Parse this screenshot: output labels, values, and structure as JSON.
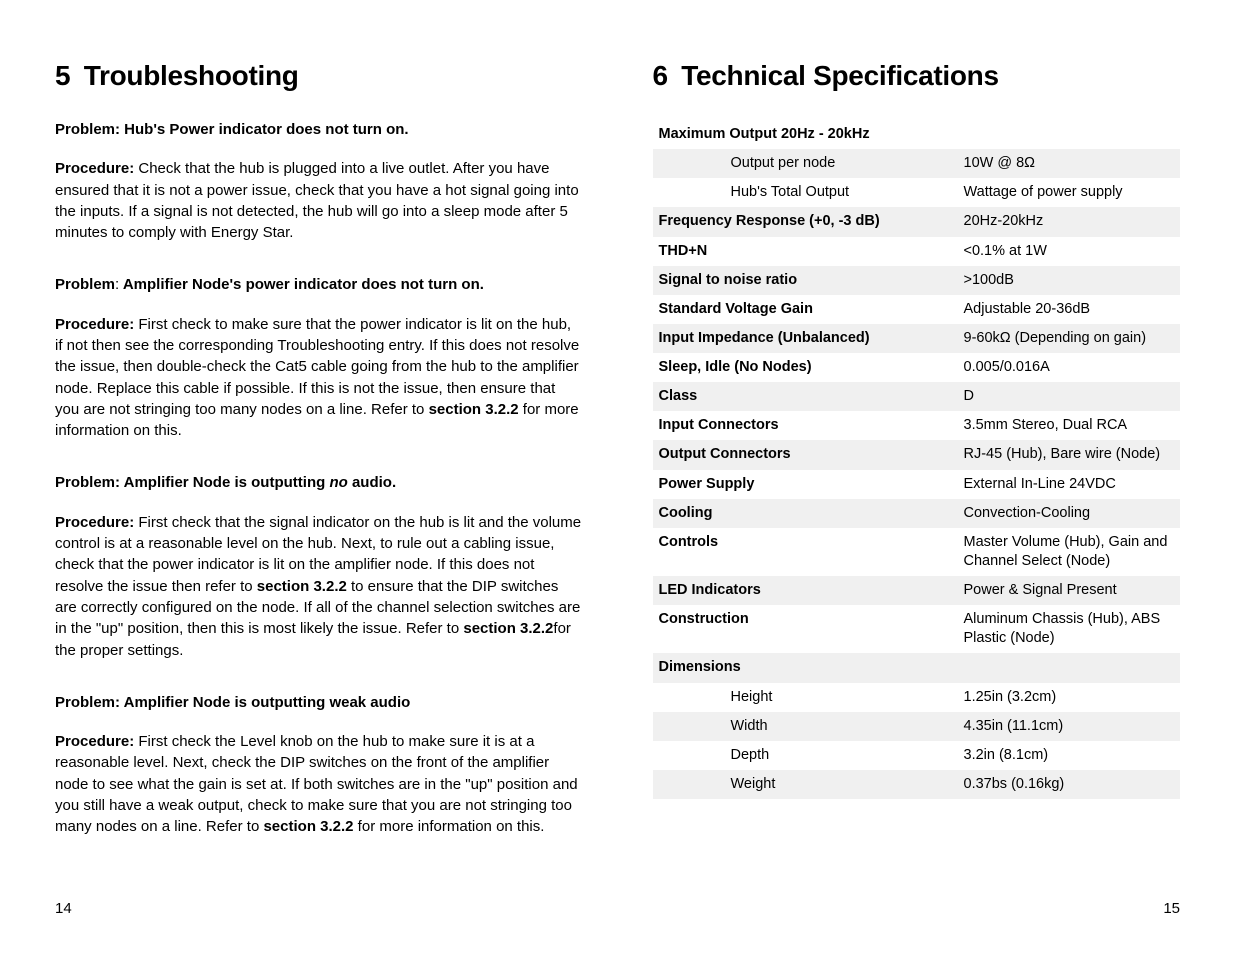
{
  "left": {
    "heading_num": "5",
    "heading_text": "Troubleshooting",
    "problems": [
      {
        "title_html": "Problem: Hub's Power indicator does not turn on.",
        "proc_html": "<b>Procedure:</b> Check that the hub is plugged into a live outlet. After you have ensured that it is not a power issue, check that you have a hot signal going into the inputs. If a signal is not detected, the hub will go into a sleep mode after 5 minutes to comply with Energy Star."
      },
      {
        "title_html": "<b>Problem</b><span class=\"no-bold-colon\">:</span> <b>Amplifier Node's power indicator does not turn on.</b>",
        "proc_html": "<b>Procedure:</b> First check to make sure that the power indicator is lit on the hub, if not then see the corresponding Troubleshooting entry. If this does not resolve the issue, then double-check the Cat5 cable going from the hub to the amplifier node. Replace this cable if possible. If this is not the issue, then ensure that you are not stringing too many nodes on a line. Refer to <b>section 3.2.2</b> for more information on this."
      },
      {
        "title_html": "Problem: Amplifier Node is outputting <i>no</i> audio.",
        "proc_html": "<b>Procedure:</b> First check that the signal indicator on the hub is lit and the volume control is at a reasonable level on the hub. Next, to rule out a cabling issue, check that the power indicator is lit on the amplifier node. If this does not resolve the issue then refer to <b>section 3.2.2</b> to ensure that the DIP switches are correctly configured on the node. If all of the channel selection switches are in the \"up\" position, then this is most likely the issue. Refer to <b>section 3.2.2</b>for the proper settings."
      },
      {
        "title_html": "Problem: Amplifier Node is outputting weak audio",
        "proc_html": "<b>Procedure:</b> First check the Level knob on the hub to make sure it is at a reasonable level. Next, check the DIP switches on the front of the amplifier node to see what the gain is set at. If both switches are in the \"up\" position and you still have a weak output, check to make sure that you are not stringing too many nodes on a line. Refer to <b>section 3.2.2</b> for more information on this."
      }
    ]
  },
  "right": {
    "heading_num": "6",
    "heading_text": "Technical Specifications",
    "rows": [
      {
        "lab": "Maximum Output 20Hz - 20kHz",
        "val": "",
        "sub": false,
        "alt": false
      },
      {
        "lab": "Output per node",
        "val": "10W @ 8Ω",
        "sub": true,
        "alt": true
      },
      {
        "lab": "Hub's Total Output",
        "val": "Wattage of power supply",
        "sub": true,
        "alt": false
      },
      {
        "lab": "Frequency Response (+0, -3 dB)",
        "val": "20Hz-20kHz",
        "sub": false,
        "alt": true
      },
      {
        "lab": "THD+N",
        "val": "<0.1% at 1W",
        "sub": false,
        "alt": false
      },
      {
        "lab": "Signal to noise ratio",
        "val": ">100dB",
        "sub": false,
        "alt": true
      },
      {
        "lab": "Standard Voltage Gain",
        "val": "Adjustable 20-36dB",
        "sub": false,
        "alt": false
      },
      {
        "lab": "Input Impedance (Unbalanced)",
        "val": "9-60kΩ (Depending on gain)",
        "sub": false,
        "alt": true
      },
      {
        "lab": "Sleep, Idle (No Nodes)",
        "val": "0.005/0.016A",
        "sub": false,
        "alt": false
      },
      {
        "lab": "Class",
        "val": "D",
        "sub": false,
        "alt": true
      },
      {
        "lab": "Input Connectors",
        "val": "3.5mm Stereo, Dual RCA",
        "sub": false,
        "alt": false
      },
      {
        "lab": "Output Connectors",
        "val": "RJ-45 (Hub), Bare wire (Node)",
        "sub": false,
        "alt": true
      },
      {
        "lab": "Power Supply",
        "val": "External In-Line 24VDC",
        "sub": false,
        "alt": false
      },
      {
        "lab": "Cooling",
        "val": "Convection-Cooling",
        "sub": false,
        "alt": true
      },
      {
        "lab": "Controls",
        "val": "Master Volume (Hub), Gain and Channel Select (Node)",
        "sub": false,
        "alt": false
      },
      {
        "lab": "LED Indicators",
        "val": "Power & Signal Present",
        "sub": false,
        "alt": true
      },
      {
        "lab": "Construction",
        "val": "Aluminum Chassis (Hub), ABS Plastic (Node)",
        "sub": false,
        "alt": false
      },
      {
        "lab": "Dimensions",
        "val": "",
        "sub": false,
        "alt": true
      },
      {
        "lab": "Height",
        "val": "1.25in (3.2cm)",
        "sub": true,
        "alt": false
      },
      {
        "lab": "Width",
        "val": "4.35in (11.1cm)",
        "sub": true,
        "alt": true
      },
      {
        "lab": "Depth",
        "val": "3.2in (8.1cm)",
        "sub": true,
        "alt": false
      },
      {
        "lab": "Weight",
        "val": "0.37bs (0.16kg)",
        "sub": true,
        "alt": true
      },
      {
        "lab": "",
        "val": "",
        "sub": false,
        "alt": false,
        "empty": true
      }
    ]
  },
  "page_left": "14",
  "page_right": "15"
}
